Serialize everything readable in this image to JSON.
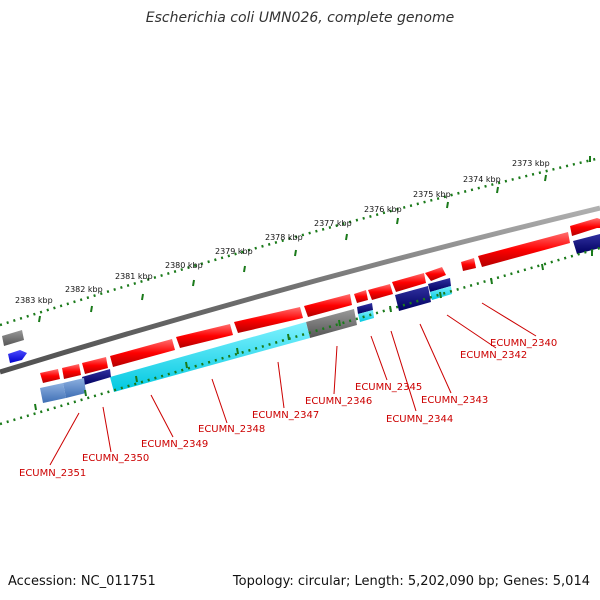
{
  "header": {
    "title": "Escherichia coli UMN026, complete genome"
  },
  "footer": {
    "accession": "Accession: NC_011751",
    "summary": "Topology: circular; Length: 5,202,090 bp; Genes: 5,014"
  },
  "scale": {
    "tick_labels": [
      "2373 kbp",
      "2374 kbp",
      "2375 kbp",
      "2376 kbp",
      "2377 kbp",
      "2378 kbp",
      "2379 kbp",
      "2380 kbp",
      "2381 kbp",
      "2382 kbp",
      "2383 kbp"
    ]
  },
  "gene_labels": [
    "ECUMN_2340",
    "ECUMN_2342",
    "ECUMN_2343",
    "ECUMN_2344",
    "ECUMN_2345",
    "ECUMN_2346",
    "ECUMN_2347",
    "ECUMN_2348",
    "ECUMN_2349",
    "ECUMN_2350",
    "ECUMN_2351"
  ],
  "colors": {
    "cds": "#ff0000",
    "rna": "#0000ff",
    "pseudo": "#707070",
    "cog_a": "#00e5ff",
    "cog_b": "#000080",
    "cog_c": "#5b8fd6",
    "backbone": "#808080",
    "scale": "#1a7a1a",
    "label": "#cc0000"
  }
}
